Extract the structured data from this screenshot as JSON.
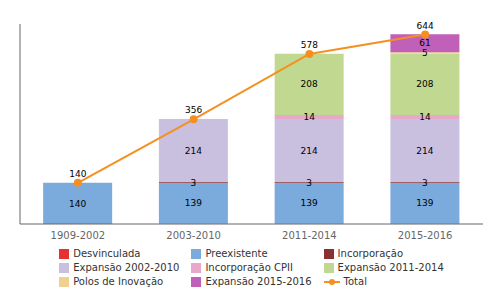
{
  "chart_data": {
    "type": "bar",
    "stacked": true,
    "categories": [
      "1909-2002",
      "2003-2010",
      "2011-2014",
      "2015-2016"
    ],
    "series": [
      {
        "name": "Desvinculada",
        "color": "#e83030",
        "values": [
          0,
          1,
          1,
          1
        ],
        "value_labels": [
          null,
          null,
          null,
          null
        ]
      },
      {
        "name": "Preexistente",
        "color": "#7aabdc",
        "values": [
          140,
          139,
          139,
          139
        ],
        "value_labels": [
          "140",
          "139",
          "139",
          "139"
        ]
      },
      {
        "name": "Incorporação",
        "color": "#8b3030",
        "values": [
          0,
          3,
          3,
          3
        ],
        "value_labels": [
          null,
          "3",
          "3",
          "3"
        ]
      },
      {
        "name": "Expansão 2002-2010",
        "color": "#c9c0e0",
        "values": [
          0,
          214,
          214,
          214
        ],
        "value_labels": [
          null,
          "214",
          "214",
          "214"
        ]
      },
      {
        "name": "Incorporação CPII",
        "color": "#e8a8cc",
        "values": [
          0,
          0,
          14,
          14
        ],
        "value_labels": [
          null,
          null,
          "14",
          "14"
        ]
      },
      {
        "name": "Expansão 2011-2014",
        "color": "#c0d890",
        "values": [
          0,
          0,
          208,
          208
        ],
        "value_labels": [
          null,
          null,
          "208",
          "208"
        ]
      },
      {
        "name": "Polos de Inovação",
        "color": "#f0d090",
        "values": [
          0,
          0,
          0,
          5
        ],
        "value_labels": [
          null,
          null,
          null,
          "5"
        ]
      },
      {
        "name": "Expansão 2015-2016",
        "color": "#c060b8",
        "values": [
          0,
          0,
          0,
          61
        ],
        "value_labels": [
          null,
          null,
          null,
          "61"
        ]
      },
      {
        "name": "Total",
        "type": "line",
        "color": "#f59020",
        "marker": "circle",
        "values": [
          140,
          356,
          578,
          644
        ],
        "data_labels": true
      }
    ],
    "ylim": [
      0,
      680
    ],
    "tick_labels": "x",
    "grid": false,
    "legend": "bottom",
    "data_labels": true
  }
}
